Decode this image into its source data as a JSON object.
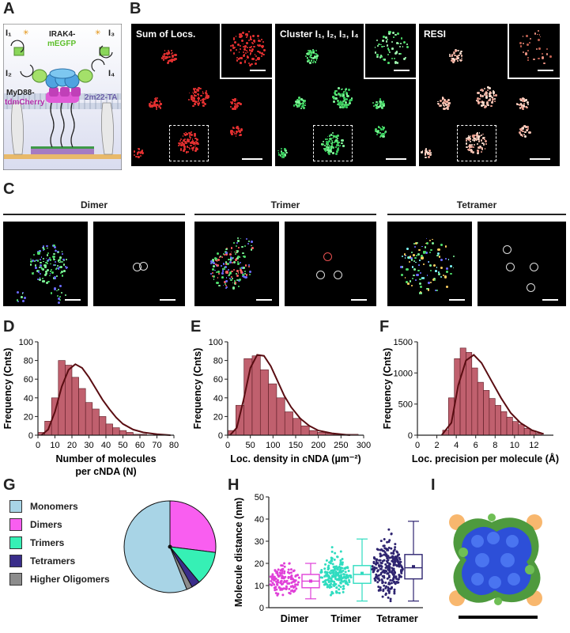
{
  "panels": {
    "A": {
      "letter": "A",
      "labels": {
        "i1": "I₁",
        "i2": "I₂",
        "i3": "I₃",
        "i4": "I₄",
        "irak4": "IRAK4-",
        "megfp": "mEGFP",
        "myd88": "MyD88-",
        "tdm": "tdmCherry",
        "m22": "2m22-TA"
      }
    },
    "B": {
      "letter": "B",
      "titles": [
        "Sum of Locs.",
        "Cluster I₁, I₂, I₃, I₄",
        "RESI"
      ]
    },
    "C": {
      "letter": "C",
      "groups": [
        "Dimer",
        "Trimer",
        "Tetramer"
      ]
    },
    "D": {
      "letter": "D"
    },
    "E": {
      "letter": "E"
    },
    "F": {
      "letter": "F"
    },
    "G": {
      "letter": "G"
    },
    "H": {
      "letter": "H"
    },
    "I": {
      "letter": "I"
    }
  },
  "colors": {
    "bar": "#c0606e",
    "curve": "#5a0d12",
    "red": "#e23030",
    "green": "#4ddc6a",
    "resi": "#f3c0b0"
  },
  "chart_data": [
    {
      "id": "D",
      "type": "bar",
      "xlabel": "Number of molecules",
      "xlabel2": "per cNDA (N)",
      "ylabel": "Frequency (Cnts)",
      "xlim": [
        0,
        80
      ],
      "ylim": [
        0,
        100
      ],
      "xticks": [
        0,
        10,
        20,
        30,
        40,
        50,
        60,
        70,
        80
      ],
      "yticks": [
        0,
        20,
        40,
        60,
        80,
        100
      ],
      "bin_width": 4,
      "bins": [
        4,
        8,
        12,
        16,
        20,
        24,
        28,
        32,
        36,
        40,
        44,
        48,
        52,
        56,
        60,
        64,
        68,
        72
      ],
      "values": [
        3,
        15,
        40,
        80,
        75,
        62,
        50,
        35,
        28,
        20,
        12,
        8,
        5,
        3,
        1,
        1,
        0,
        1
      ],
      "fit": [
        [
          2,
          0
        ],
        [
          6,
          6
        ],
        [
          10,
          25
        ],
        [
          14,
          52
        ],
        [
          18,
          70
        ],
        [
          22,
          76
        ],
        [
          26,
          72
        ],
        [
          30,
          62
        ],
        [
          34,
          50
        ],
        [
          38,
          38
        ],
        [
          42,
          28
        ],
        [
          46,
          19
        ],
        [
          50,
          12
        ],
        [
          56,
          6
        ],
        [
          62,
          3
        ],
        [
          70,
          1
        ],
        [
          78,
          0
        ]
      ]
    },
    {
      "id": "E",
      "type": "bar",
      "xlabel": "Loc. density in cNDA (µm⁻²)",
      "ylabel": "Frequency (Cnts)",
      "xlim": [
        0,
        300
      ],
      "ylim": [
        0,
        100
      ],
      "xticks": [
        0,
        50,
        100,
        150,
        200,
        250,
        300
      ],
      "yticks": [
        0,
        20,
        40,
        60,
        80,
        100
      ],
      "bin_width": 18,
      "bins": [
        18,
        36,
        54,
        72,
        90,
        108,
        126,
        144,
        162,
        180,
        198,
        216,
        234,
        252,
        270,
        288
      ],
      "values": [
        5,
        32,
        82,
        85,
        70,
        55,
        40,
        25,
        18,
        10,
        5,
        3,
        2,
        1,
        1,
        1
      ],
      "fit": [
        [
          5,
          0
        ],
        [
          20,
          8
        ],
        [
          35,
          38
        ],
        [
          50,
          72
        ],
        [
          65,
          86
        ],
        [
          80,
          85
        ],
        [
          95,
          74
        ],
        [
          110,
          58
        ],
        [
          125,
          42
        ],
        [
          140,
          30
        ],
        [
          160,
          18
        ],
        [
          180,
          10
        ],
        [
          200,
          5
        ],
        [
          230,
          2
        ],
        [
          270,
          0
        ]
      ]
    },
    {
      "id": "F",
      "type": "bar",
      "xlabel": "Loc. precision per molecule (Å)",
      "ylabel": "Frequency (Cnts)",
      "xlim": [
        0,
        14
      ],
      "ylim": [
        0,
        1500
      ],
      "xticks": [
        0,
        2,
        4,
        6,
        8,
        10,
        12
      ],
      "yticks": [
        0,
        500,
        1000,
        1500
      ],
      "bin_width": 0.6,
      "bins": [
        3.2,
        3.8,
        4.4,
        5.0,
        5.6,
        6.2,
        6.8,
        7.4,
        8.0,
        8.6,
        9.2,
        9.8,
        10.4,
        11.0,
        11.6,
        12.2,
        12.8
      ],
      "values": [
        80,
        600,
        1230,
        1400,
        1330,
        1080,
        850,
        720,
        590,
        480,
        380,
        290,
        220,
        170,
        110,
        70,
        30
      ],
      "fit": [
        [
          2.5,
          0
        ],
        [
          3.5,
          200
        ],
        [
          4.2,
          800
        ],
        [
          5.0,
          1200
        ],
        [
          5.8,
          1290
        ],
        [
          6.6,
          1160
        ],
        [
          7.6,
          880
        ],
        [
          8.6,
          600
        ],
        [
          9.6,
          360
        ],
        [
          10.6,
          200
        ],
        [
          11.8,
          80
        ],
        [
          13,
          20
        ]
      ]
    },
    {
      "id": "G",
      "type": "pie",
      "legend": [
        "Monomers",
        "Dimers",
        "Trimers",
        "Tetramers",
        "Higher Oligomers"
      ],
      "values": [
        56,
        27,
        12,
        3,
        2
      ],
      "colors": [
        "#a8d4e6",
        "#f95ef0",
        "#36f0b5",
        "#3a2d8a",
        "#8c8c8c"
      ]
    },
    {
      "id": "H",
      "type": "scatter+box",
      "ylabel": "Molecule distance (nm)",
      "ylim": [
        0,
        50
      ],
      "yticks": [
        0,
        10,
        20,
        30,
        40,
        50
      ],
      "categories": [
        "Dimer",
        "Trimer",
        "Tetramer"
      ],
      "colors": [
        "#e040d8",
        "#30dcc0",
        "#2e2470"
      ],
      "box": [
        {
          "min": 4,
          "q1": 9,
          "median": 12,
          "q3": 15,
          "max": 20,
          "mean": 12
        },
        {
          "min": 3,
          "q1": 11,
          "median": 15,
          "q3": 19,
          "max": 31,
          "mean": 15.5
        },
        {
          "min": 3,
          "q1": 13,
          "median": 18,
          "q3": 24,
          "max": 39,
          "mean": 18.5
        }
      ]
    }
  ]
}
